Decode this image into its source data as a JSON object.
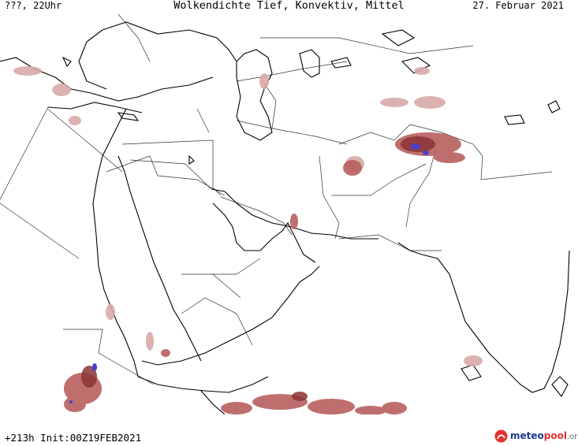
{
  "header": {
    "left": "???, 22Uhr",
    "title": "Wolkendichte   Tief, Konvektiv, Mittel",
    "date": "27. Februar 2021"
  },
  "footer": {
    "forecast": "+213h Init:00Z19FEB2021"
  },
  "brand": {
    "part1": "meteo",
    "part2": "pool",
    "part3": ".org"
  },
  "colors": {
    "cloud_light": "#d9aaa9",
    "cloud_mid": "#b8605e",
    "cloud_dark": "#8a3535",
    "cloud_core": "#4a3fc8",
    "coastline": "#000000",
    "border": "#333333"
  }
}
